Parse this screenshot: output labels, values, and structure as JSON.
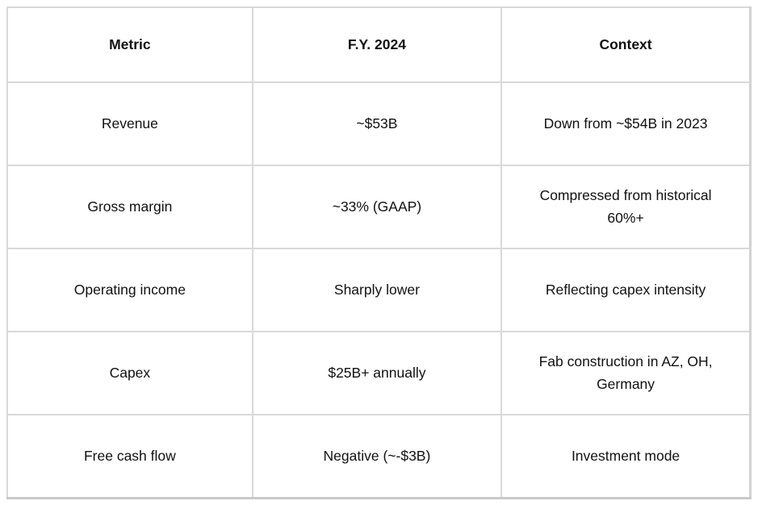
{
  "table": {
    "headers": [
      "Metric",
      "F.Y. 2024",
      "Context"
    ],
    "rows": [
      [
        "Revenue",
        "~$53B",
        "Down from ~$54B in 2023"
      ],
      [
        "Gross margin",
        "~33% (GAAP)",
        "Compressed from historical 60%+"
      ],
      [
        "Operating income",
        "Sharply lower",
        "Reflecting capex intensity"
      ],
      [
        "Capex",
        "$25B+ annually",
        "Fab construction in AZ, OH, Germany"
      ],
      [
        "Free cash flow",
        "Negative (~-$3B)",
        "Investment mode"
      ]
    ]
  },
  "colors": {
    "border": "#d9d9d9",
    "border_outer_bottom": "#c9c9c9",
    "text": "#111111",
    "background": "#ffffff"
  },
  "chart_data": {
    "type": "table",
    "columns": [
      "Metric",
      "F.Y. 2024",
      "Context"
    ],
    "rows": [
      {
        "metric": "Revenue",
        "fy_2024": "~$53B",
        "context": "Down from ~$54B in 2023"
      },
      {
        "metric": "Gross margin",
        "fy_2024": "~33% (GAAP)",
        "context": "Compressed from historical 60%+"
      },
      {
        "metric": "Operating income",
        "fy_2024": "Sharply lower",
        "context": "Reflecting capex intensity"
      },
      {
        "metric": "Capex",
        "fy_2024": "$25B+ annually",
        "context": "Fab construction in AZ, OH, Germany"
      },
      {
        "metric": "Free cash flow",
        "fy_2024": "Negative (~-$3B)",
        "context": "Investment mode"
      }
    ],
    "title": "",
    "layout_hints": {
      "grid": "on",
      "header_bold": true,
      "text_align": "center",
      "column_widths_pct": [
        33.0,
        33.5,
        33.5
      ]
    }
  }
}
